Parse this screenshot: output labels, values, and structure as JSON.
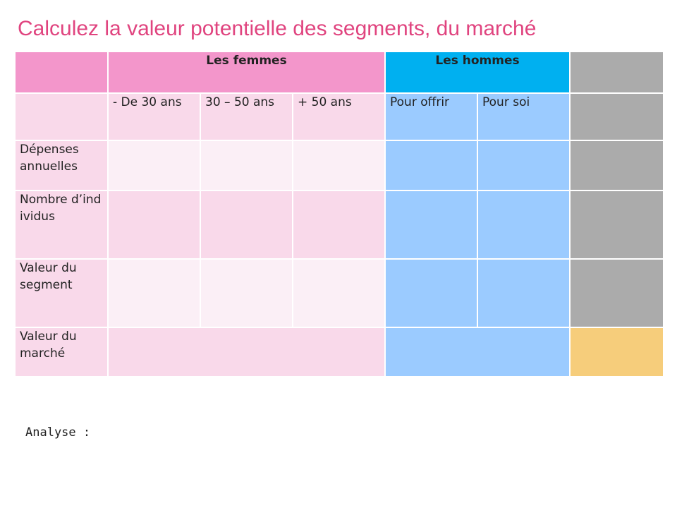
{
  "title": "Calculez la valeur potentielle des segments, du marché",
  "table": {
    "group_headers": {
      "women": "Les femmes",
      "men": "Les hommes"
    },
    "sub_headers": [
      "- De 30 ans",
      "30 – 50 ans",
      "+ 50 ans",
      "Pour offrir",
      "Pour soi"
    ],
    "row_labels": {
      "annual_spending": "Dépenses annuelles",
      "individuals": "Nombre d’individus",
      "segment_value": "Valeur du segment",
      "market_value": "Valeur du marché"
    }
  },
  "analysis_label": "Analyse :",
  "colors": {
    "title": "#e0447f",
    "women_header": "#f396cb",
    "men_header": "#00b0f0",
    "women_cell_dark": "#f9d9ea",
    "women_cell_light": "#fbeff6",
    "men_cell": "#9bcbff",
    "total_column": "#ababab",
    "market_total": "#f6cd7b"
  }
}
